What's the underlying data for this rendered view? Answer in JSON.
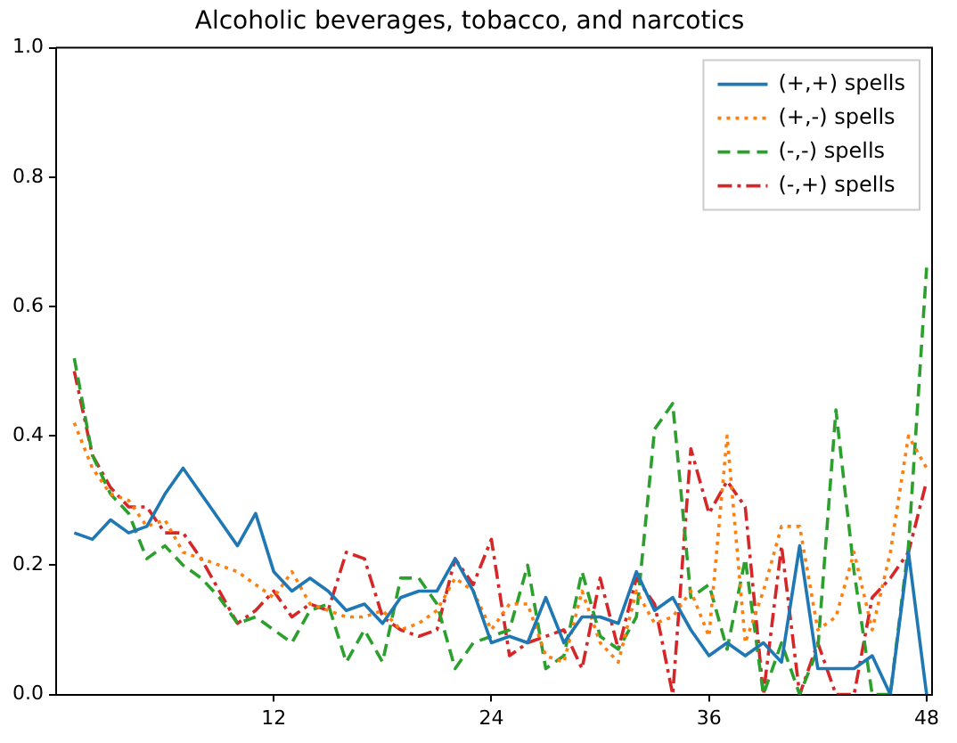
{
  "chart_data": {
    "type": "line",
    "title": "Alcoholic beverages, tobacco, and narcotics",
    "x": [
      1,
      2,
      3,
      4,
      5,
      6,
      7,
      8,
      9,
      10,
      11,
      12,
      13,
      14,
      15,
      16,
      17,
      18,
      19,
      20,
      21,
      22,
      23,
      24,
      25,
      26,
      27,
      28,
      29,
      30,
      31,
      32,
      33,
      34,
      35,
      36,
      37,
      38,
      39,
      40,
      41,
      42,
      43,
      44,
      45,
      46,
      47,
      48
    ],
    "series": [
      {
        "name": "(+,+) spells",
        "color": "#1f77b4",
        "line_style": "solid",
        "values": [
          0.25,
          0.24,
          0.27,
          0.25,
          0.26,
          0.31,
          0.35,
          0.31,
          0.27,
          0.23,
          0.28,
          0.19,
          0.16,
          0.18,
          0.16,
          0.13,
          0.14,
          0.11,
          0.15,
          0.16,
          0.16,
          0.21,
          0.16,
          0.08,
          0.09,
          0.08,
          0.15,
          0.08,
          0.12,
          0.12,
          0.11,
          0.19,
          0.13,
          0.15,
          0.1,
          0.06,
          0.08,
          0.06,
          0.08,
          0.05,
          0.23,
          0.04,
          0.04,
          0.04,
          0.06,
          0.0,
          0.22,
          0.0
        ]
      },
      {
        "name": "(+,-) spells",
        "color": "#ff7f0e",
        "line_style": "dotted",
        "values": [
          0.42,
          0.35,
          0.31,
          0.3,
          0.26,
          0.27,
          0.22,
          0.21,
          0.2,
          0.19,
          0.17,
          0.15,
          0.19,
          0.14,
          0.13,
          0.12,
          0.12,
          0.13,
          0.1,
          0.11,
          0.13,
          0.18,
          0.16,
          0.1,
          0.14,
          0.14,
          0.06,
          0.05,
          0.16,
          0.08,
          0.05,
          0.16,
          0.11,
          0.12,
          0.16,
          0.09,
          0.4,
          0.08,
          0.16,
          0.26,
          0.26,
          0.1,
          0.12,
          0.22,
          0.1,
          0.22,
          0.4,
          0.35
        ]
      },
      {
        "name": "(-,-) spells",
        "color": "#2ca02c",
        "line_style": "dashed",
        "values": [
          0.52,
          0.37,
          0.31,
          0.28,
          0.21,
          0.23,
          0.2,
          0.18,
          0.15,
          0.11,
          0.12,
          0.1,
          0.08,
          0.13,
          0.14,
          0.05,
          0.1,
          0.05,
          0.18,
          0.18,
          0.14,
          0.04,
          0.08,
          0.09,
          0.1,
          0.2,
          0.04,
          0.06,
          0.19,
          0.09,
          0.07,
          0.12,
          0.41,
          0.45,
          0.15,
          0.17,
          0.07,
          0.21,
          0.0,
          0.08,
          0.0,
          0.07,
          0.44,
          0.19,
          0.0,
          0.0,
          0.23,
          0.66
        ]
      },
      {
        "name": "(-,+) spells",
        "color": "#d62728",
        "line_style": "dashdot",
        "values": [
          0.5,
          0.37,
          0.32,
          0.29,
          0.29,
          0.25,
          0.25,
          0.21,
          0.16,
          0.11,
          0.13,
          0.16,
          0.12,
          0.14,
          0.13,
          0.22,
          0.21,
          0.12,
          0.1,
          0.09,
          0.1,
          0.21,
          0.17,
          0.24,
          0.06,
          0.08,
          0.09,
          0.1,
          0.04,
          0.18,
          0.07,
          0.18,
          0.14,
          0.0,
          0.38,
          0.28,
          0.33,
          0.29,
          0.0,
          0.23,
          0.0,
          0.08,
          0.0,
          0.0,
          0.15,
          0.18,
          0.22,
          0.33
        ]
      }
    ],
    "xlim": [
      0,
      48.3
    ],
    "xticks": [
      12,
      24,
      36,
      48
    ],
    "ylim": [
      0,
      1
    ],
    "yticks": [
      {
        "value": 0,
        "label": "0.0"
      },
      {
        "value": 0.2,
        "label": "0.2"
      },
      {
        "value": 0.4,
        "label": "0.4"
      },
      {
        "value": 0.6,
        "label": "0.6"
      },
      {
        "value": 0.8,
        "label": "0.8"
      },
      {
        "value": 1,
        "label": "1.0"
      }
    ],
    "grid": false,
    "legend": "top right",
    "marker": "none"
  }
}
